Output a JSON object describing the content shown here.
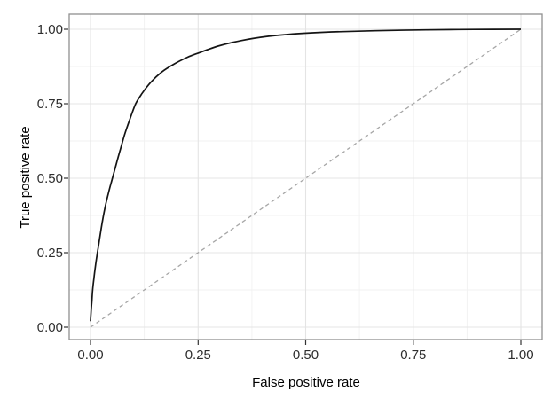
{
  "chart_data": {
    "type": "line",
    "title": "",
    "xlabel": "False positive rate",
    "ylabel": "True positive rate",
    "xlim": [
      0,
      1
    ],
    "ylim": [
      0,
      1
    ],
    "legend_position": "none",
    "grid": {
      "major": true,
      "minor": true
    },
    "x_axis": {
      "tick_values": [
        0,
        0.25,
        0.5,
        0.75,
        1
      ],
      "tick_labels": [
        "0.00",
        "0.25",
        "0.50",
        "0.75",
        "1.00"
      ],
      "minor_values": [
        0.125,
        0.375,
        0.625,
        0.875
      ]
    },
    "y_axis": {
      "tick_values": [
        0,
        0.25,
        0.5,
        0.75,
        1
      ],
      "tick_labels": [
        "0.00",
        "0.25",
        "0.50",
        "0.75",
        "1.00"
      ],
      "minor_values": [
        0.125,
        0.375,
        0.625,
        0.875
      ]
    },
    "series": [
      {
        "name": "chance-diagonal",
        "linetype": "dashed",
        "color": "#a6a6a6",
        "stroke_width": 1.3,
        "points": [
          [
            0,
            0
          ],
          [
            1,
            1
          ]
        ]
      },
      {
        "name": "roc-curve",
        "linetype": "solid",
        "color": "#141414",
        "stroke_width": 1.7,
        "points": [
          [
            0,
            0.02
          ],
          [
            0.001,
            0.045
          ],
          [
            0.003,
            0.085
          ],
          [
            0.005,
            0.125
          ],
          [
            0.008,
            0.165
          ],
          [
            0.012,
            0.21
          ],
          [
            0.017,
            0.258
          ],
          [
            0.022,
            0.305
          ],
          [
            0.028,
            0.358
          ],
          [
            0.035,
            0.41
          ],
          [
            0.043,
            0.458
          ],
          [
            0.051,
            0.5
          ],
          [
            0.06,
            0.548
          ],
          [
            0.07,
            0.6
          ],
          [
            0.08,
            0.65
          ],
          [
            0.092,
            0.7
          ],
          [
            0.105,
            0.75
          ],
          [
            0.12,
            0.785
          ],
          [
            0.14,
            0.822
          ],
          [
            0.165,
            0.856
          ],
          [
            0.195,
            0.884
          ],
          [
            0.225,
            0.906
          ],
          [
            0.25,
            0.92
          ],
          [
            0.3,
            0.945
          ],
          [
            0.35,
            0.962
          ],
          [
            0.41,
            0.976
          ],
          [
            0.48,
            0.985
          ],
          [
            0.56,
            0.991
          ],
          [
            0.66,
            0.995
          ],
          [
            0.78,
            0.998
          ],
          [
            0.89,
            0.9995
          ],
          [
            1,
            1
          ]
        ]
      }
    ],
    "style_colors": {
      "panel_background": "#ffffff",
      "panel_border": "#909090",
      "grid_major": "#e4e4e4",
      "grid_minor": "#f1f1f1",
      "tick_mark": "#333333",
      "tick_label": "#2e2e2e",
      "axis_title": "#000000"
    }
  }
}
